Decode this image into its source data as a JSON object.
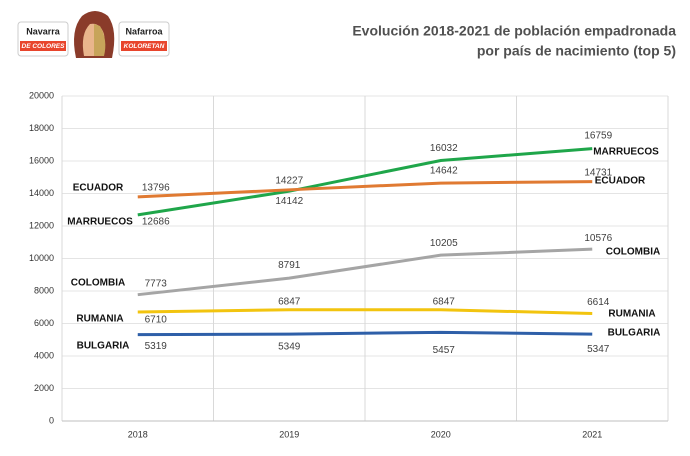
{
  "logos": {
    "left_top": "Navarra",
    "left_bottom": "DE COLORES",
    "right_top": "Nafarroa",
    "right_bottom": "KOLORETAN"
  },
  "chart_data": {
    "type": "line",
    "title": "Evolución 2018-2021 de población empadronada",
    "subtitle": "por país de nacimiento (top 5)",
    "categories": [
      "2018",
      "2019",
      "2020",
      "2021"
    ],
    "series": [
      {
        "name": "MARRUECOS",
        "color": "#1fa64a",
        "values": [
          12686,
          14142,
          16032,
          16759
        ]
      },
      {
        "name": "ECUADOR",
        "color": "#e07a32",
        "values": [
          13796,
          14227,
          14642,
          14731
        ]
      },
      {
        "name": "COLOMBIA",
        "color": "#a5a5a5",
        "values": [
          7773,
          8791,
          10205,
          10576
        ]
      },
      {
        "name": "RUMANIA",
        "color": "#f2c40f",
        "values": [
          6710,
          6847,
          6847,
          6614
        ]
      },
      {
        "name": "BULGARIA",
        "color": "#2e5fa8",
        "values": [
          5319,
          5349,
          5457,
          5347
        ]
      }
    ],
    "ylim": [
      0,
      20000
    ],
    "yticks": [
      0,
      2000,
      4000,
      6000,
      8000,
      10000,
      12000,
      14000,
      16000,
      18000,
      20000
    ],
    "grid": true
  }
}
